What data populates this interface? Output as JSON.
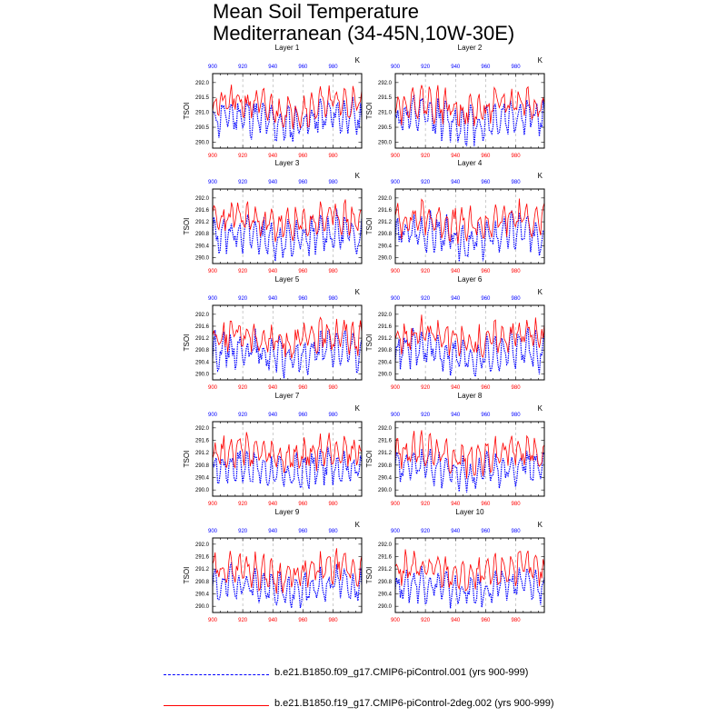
{
  "title": {
    "line1": "Mean Soil Temperature",
    "line2": "Mediterranean (34-45N,10W-30E)"
  },
  "colors": {
    "series1": "#0000ff",
    "series2": "#ff0000",
    "grid": "#aaaaaa"
  },
  "legend": {
    "items": [
      {
        "label": "b.e21.B1850.f09_g17.CMIP6-piControl.001 (yrs 900-999)",
        "color": "#0000ff",
        "style": "dashed"
      },
      {
        "label": "b.e21.B1850.f19_g17.CMIP6-piControl-2deg.002 (yrs 900-999)",
        "color": "#ff0000",
        "style": "solid"
      }
    ]
  },
  "chart_data": {
    "type": "line",
    "ylabel": "TSOI",
    "units": "K",
    "x_range": [
      900,
      999
    ],
    "x_ticks": [
      900,
      920,
      940,
      960,
      980
    ],
    "panels": [
      {
        "title": "Layer 1",
        "ylim": [
          289.8,
          292.3
        ],
        "y_ticks": [
          290.0,
          290.5,
          291.0,
          291.5,
          292.0
        ],
        "tick_format": "0.0",
        "series": [
          {
            "name": "b.e21.B1850.f09_g17.CMIP6-piControl.001 (yrs 900-999)",
            "base": 290.75,
            "amp": 0.45,
            "noise": 0.35,
            "seed": 11
          },
          {
            "name": "b.e21.B1850.f19_g17.CMIP6-piControl-2deg.002 (yrs 900-999)",
            "base": 291.2,
            "amp": 0.35,
            "noise": 0.35,
            "seed": 21
          }
        ]
      },
      {
        "title": "Layer 2",
        "ylim": [
          289.8,
          292.3
        ],
        "y_ticks": [
          290.0,
          290.5,
          291.0,
          291.5,
          292.0
        ],
        "tick_format": "0.0",
        "series": [
          {
            "name": "b.e21.B1850.f09_g17.CMIP6-piControl.001 (yrs 900-999)",
            "base": 290.75,
            "amp": 0.45,
            "noise": 0.35,
            "seed": 12
          },
          {
            "name": "b.e21.B1850.f19_g17.CMIP6-piControl-2deg.002 (yrs 900-999)",
            "base": 291.2,
            "amp": 0.35,
            "noise": 0.35,
            "seed": 22
          }
        ]
      },
      {
        "title": "Layer 3",
        "ylim": [
          289.8,
          292.3
        ],
        "y_ticks": [
          290.0,
          290.4,
          290.8,
          291.2,
          291.6,
          292.0
        ],
        "tick_format": "0.0",
        "series": [
          {
            "name": "b.e21.B1850.f09_g17.CMIP6-piControl.001 (yrs 900-999)",
            "base": 290.7,
            "amp": 0.45,
            "noise": 0.35,
            "seed": 13
          },
          {
            "name": "b.e21.B1850.f19_g17.CMIP6-piControl-2deg.002 (yrs 900-999)",
            "base": 291.2,
            "amp": 0.35,
            "noise": 0.35,
            "seed": 23
          }
        ]
      },
      {
        "title": "Layer 4",
        "ylim": [
          289.8,
          292.3
        ],
        "y_ticks": [
          290.0,
          290.4,
          290.8,
          291.2,
          291.6,
          292.0
        ],
        "tick_format": "0.0",
        "series": [
          {
            "name": "b.e21.B1850.f09_g17.CMIP6-piControl.001 (yrs 900-999)",
            "base": 290.7,
            "amp": 0.45,
            "noise": 0.35,
            "seed": 14
          },
          {
            "name": "b.e21.B1850.f19_g17.CMIP6-piControl-2deg.002 (yrs 900-999)",
            "base": 291.2,
            "amp": 0.35,
            "noise": 0.35,
            "seed": 24
          }
        ]
      },
      {
        "title": "Layer 5",
        "ylim": [
          289.8,
          292.3
        ],
        "y_ticks": [
          290.0,
          290.4,
          290.8,
          291.2,
          291.6,
          292.0
        ],
        "tick_format": "0.0",
        "series": [
          {
            "name": "b.e21.B1850.f09_g17.CMIP6-piControl.001 (yrs 900-999)",
            "base": 290.7,
            "amp": 0.45,
            "noise": 0.35,
            "seed": 15
          },
          {
            "name": "b.e21.B1850.f19_g17.CMIP6-piControl-2deg.002 (yrs 900-999)",
            "base": 291.2,
            "amp": 0.35,
            "noise": 0.35,
            "seed": 25
          }
        ]
      },
      {
        "title": "Layer 6",
        "ylim": [
          289.8,
          292.3
        ],
        "y_ticks": [
          290.0,
          290.4,
          290.8,
          291.2,
          291.6,
          292.0
        ],
        "tick_format": "0.0",
        "series": [
          {
            "name": "b.e21.B1850.f09_g17.CMIP6-piControl.001 (yrs 900-999)",
            "base": 290.7,
            "amp": 0.45,
            "noise": 0.35,
            "seed": 16
          },
          {
            "name": "b.e21.B1850.f19_g17.CMIP6-piControl-2deg.002 (yrs 900-999)",
            "base": 291.2,
            "amp": 0.35,
            "noise": 0.35,
            "seed": 26
          }
        ]
      },
      {
        "title": "Layer 7",
        "ylim": [
          289.8,
          292.2
        ],
        "y_ticks": [
          290.0,
          290.4,
          290.8,
          291.2,
          291.6,
          292.0
        ],
        "tick_format": "0.0",
        "series": [
          {
            "name": "b.e21.B1850.f09_g17.CMIP6-piControl.001 (yrs 900-999)",
            "base": 290.65,
            "amp": 0.4,
            "noise": 0.3,
            "seed": 17
          },
          {
            "name": "b.e21.B1850.f19_g17.CMIP6-piControl-2deg.002 (yrs 900-999)",
            "base": 291.15,
            "amp": 0.35,
            "noise": 0.3,
            "seed": 27
          }
        ]
      },
      {
        "title": "Layer 8",
        "ylim": [
          289.8,
          292.2
        ],
        "y_ticks": [
          290.0,
          290.4,
          290.8,
          291.2,
          291.6,
          292.0
        ],
        "tick_format": "0.0",
        "series": [
          {
            "name": "b.e21.B1850.f09_g17.CMIP6-piControl.001 (yrs 900-999)",
            "base": 290.65,
            "amp": 0.4,
            "noise": 0.3,
            "seed": 18
          },
          {
            "name": "b.e21.B1850.f19_g17.CMIP6-piControl-2deg.002 (yrs 900-999)",
            "base": 291.15,
            "amp": 0.35,
            "noise": 0.3,
            "seed": 28
          }
        ]
      },
      {
        "title": "Layer 9",
        "ylim": [
          289.8,
          292.2
        ],
        "y_ticks": [
          290.0,
          290.4,
          290.8,
          291.2,
          291.6,
          292.0
        ],
        "tick_format": "0.0",
        "series": [
          {
            "name": "b.e21.B1850.f09_g17.CMIP6-piControl.001 (yrs 900-999)",
            "base": 290.6,
            "amp": 0.4,
            "noise": 0.3,
            "seed": 19
          },
          {
            "name": "b.e21.B1850.f19_g17.CMIP6-piControl-2deg.002 (yrs 900-999)",
            "base": 291.1,
            "amp": 0.35,
            "noise": 0.3,
            "seed": 29
          }
        ]
      },
      {
        "title": "Layer 10",
        "ylim": [
          289.8,
          292.2
        ],
        "y_ticks": [
          290.0,
          290.4,
          290.8,
          291.2,
          291.6,
          292.0
        ],
        "tick_format": "0.0",
        "series": [
          {
            "name": "b.e21.B1850.f09_g17.CMIP6-piControl.001 (yrs 900-999)",
            "base": 290.6,
            "amp": 0.4,
            "noise": 0.3,
            "seed": 20
          },
          {
            "name": "b.e21.B1850.f19_g17.CMIP6-piControl-2deg.002 (yrs 900-999)",
            "base": 291.1,
            "amp": 0.35,
            "noise": 0.3,
            "seed": 30
          }
        ]
      }
    ]
  }
}
